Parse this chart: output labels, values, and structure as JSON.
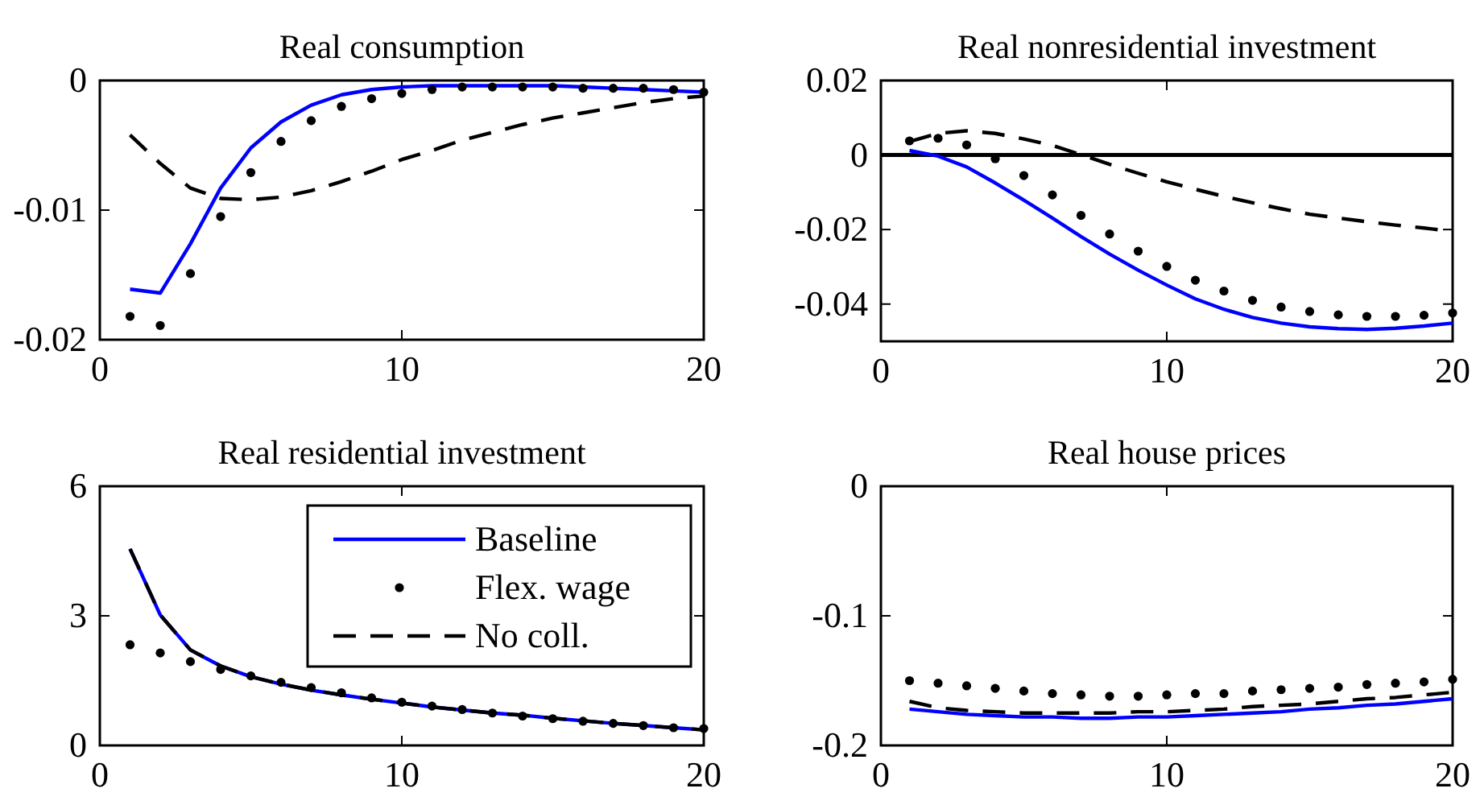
{
  "chart_data": [
    {
      "type": "line",
      "title": "Real consumption",
      "x": [
        1,
        2,
        3,
        4,
        5,
        6,
        7,
        8,
        9,
        10,
        11,
        12,
        13,
        14,
        15,
        16,
        17,
        18,
        19,
        20
      ],
      "xlim": [
        0,
        20
      ],
      "xticks": [
        0,
        10,
        20
      ],
      "ylim": [
        -0.02,
        0
      ],
      "yticks": [
        -0.02,
        -0.01,
        0
      ],
      "series": [
        {
          "color": "#0000ff",
          "line_style": "solid",
          "values": [
            -0.0161,
            -0.0164,
            -0.0126,
            -0.0083,
            -0.0052,
            -0.0032,
            -0.0019,
            -0.0011,
            -0.0007,
            -0.0005,
            -0.0004,
            -0.0004,
            -0.0004,
            -0.0004,
            -0.0004,
            -0.0005,
            -0.0006,
            -0.0007,
            -0.0008,
            -0.0009
          ]
        },
        {
          "type": "scatter",
          "color": "#000000",
          "marker": "circle",
          "values": [
            -0.0182,
            -0.0189,
            -0.0149,
            -0.0105,
            -0.0071,
            -0.0047,
            -0.0031,
            -0.002,
            -0.0014,
            -0.001,
            -0.0007,
            -0.0005,
            -0.0005,
            -0.0005,
            -0.0005,
            -0.0006,
            -0.0006,
            -0.0006,
            -0.0007,
            -0.0009
          ]
        },
        {
          "color": "#000000",
          "line_style": "dashed",
          "values": [
            -0.0042,
            -0.0064,
            -0.0083,
            -0.0091,
            -0.0092,
            -0.009,
            -0.0085,
            -0.0078,
            -0.007,
            -0.0061,
            -0.0054,
            -0.0046,
            -0.004,
            -0.0034,
            -0.0029,
            -0.0025,
            -0.0021,
            -0.0017,
            -0.0014,
            -0.0012
          ]
        }
      ]
    },
    {
      "type": "line",
      "title": "Real nonresidential investment",
      "x": [
        1,
        2,
        3,
        4,
        5,
        6,
        7,
        8,
        9,
        10,
        11,
        12,
        13,
        14,
        15,
        16,
        17,
        18,
        19,
        20
      ],
      "xlim": [
        0,
        20
      ],
      "xticks": [
        0,
        10,
        20
      ],
      "ylim": [
        -0.05,
        0.02
      ],
      "yticks": [
        -0.04,
        -0.02,
        0,
        0.02
      ],
      "ref_lines": [
        {
          "axis": "y",
          "value": 0,
          "color": "#000000"
        }
      ],
      "series": [
        {
          "color": "#0000ff",
          "line_style": "solid",
          "values": [
            0.0012,
            -0.0003,
            -0.0032,
            -0.0075,
            -0.0121,
            -0.0169,
            -0.0219,
            -0.0266,
            -0.0309,
            -0.0349,
            -0.0386,
            -0.0414,
            -0.0436,
            -0.0451,
            -0.0461,
            -0.0466,
            -0.0468,
            -0.0465,
            -0.0459,
            -0.0451
          ]
        },
        {
          "type": "scatter",
          "color": "#000000",
          "marker": "circle",
          "values": [
            0.0038,
            0.0045,
            0.0027,
            -0.001,
            -0.0055,
            -0.0107,
            -0.0162,
            -0.0212,
            -0.0258,
            -0.0299,
            -0.0336,
            -0.0365,
            -0.039,
            -0.0408,
            -0.042,
            -0.0429,
            -0.0433,
            -0.0433,
            -0.043,
            -0.0424
          ]
        },
        {
          "color": "#000000",
          "line_style": "dashed",
          "values": [
            0.0036,
            0.0058,
            0.0065,
            0.0058,
            0.0043,
            0.0026,
            0.0001,
            -0.0025,
            -0.0049,
            -0.0072,
            -0.0092,
            -0.0111,
            -0.0128,
            -0.0144,
            -0.0159,
            -0.0169,
            -0.0179,
            -0.0188,
            -0.0196,
            -0.0205
          ]
        }
      ]
    },
    {
      "type": "line",
      "title": "Real residential investment",
      "x": [
        1,
        2,
        3,
        4,
        5,
        6,
        7,
        8,
        9,
        10,
        11,
        12,
        13,
        14,
        15,
        16,
        17,
        18,
        19,
        20
      ],
      "xlim": [
        0,
        20
      ],
      "xticks": [
        0,
        10,
        20
      ],
      "ylim": [
        0,
        6
      ],
      "yticks": [
        0,
        3,
        6
      ],
      "legend": "top right",
      "series": [
        {
          "name": "Baseline",
          "color": "#0000ff",
          "line_style": "solid",
          "values": [
            4.55,
            3.02,
            2.21,
            1.84,
            1.59,
            1.42,
            1.28,
            1.17,
            1.07,
            0.98,
            0.89,
            0.82,
            0.75,
            0.7,
            0.63,
            0.57,
            0.51,
            0.46,
            0.41,
            0.36
          ]
        },
        {
          "name": "Flex. wage",
          "type": "scatter",
          "color": "#000000",
          "marker": "circle",
          "values": [
            2.33,
            2.14,
            1.94,
            1.76,
            1.61,
            1.46,
            1.34,
            1.22,
            1.1,
            1.0,
            0.91,
            0.83,
            0.75,
            0.68,
            0.62,
            0.56,
            0.51,
            0.46,
            0.41,
            0.39
          ]
        },
        {
          "name": "No coll.",
          "color": "#000000",
          "line_style": "dashed",
          "values": [
            4.55,
            3.02,
            2.21,
            1.84,
            1.59,
            1.42,
            1.28,
            1.17,
            1.07,
            0.98,
            0.89,
            0.82,
            0.75,
            0.7,
            0.63,
            0.57,
            0.51,
            0.46,
            0.41,
            0.36
          ]
        }
      ]
    },
    {
      "type": "line",
      "title": "Real house prices",
      "x": [
        1,
        2,
        3,
        4,
        5,
        6,
        7,
        8,
        9,
        10,
        11,
        12,
        13,
        14,
        15,
        16,
        17,
        18,
        19,
        20
      ],
      "xlim": [
        0,
        20
      ],
      "xticks": [
        0,
        10,
        20
      ],
      "ylim": [
        -0.2,
        0
      ],
      "yticks": [
        -0.2,
        -0.1,
        0
      ],
      "series": [
        {
          "color": "#0000ff",
          "line_style": "solid",
          "values": [
            -0.172,
            -0.174,
            -0.176,
            -0.177,
            -0.178,
            -0.178,
            -0.179,
            -0.179,
            -0.178,
            -0.178,
            -0.177,
            -0.176,
            -0.175,
            -0.174,
            -0.172,
            -0.171,
            -0.169,
            -0.168,
            -0.166,
            -0.164
          ]
        },
        {
          "type": "scatter",
          "color": "#000000",
          "marker": "circle",
          "values": [
            -0.15,
            -0.152,
            -0.154,
            -0.156,
            -0.158,
            -0.16,
            -0.161,
            -0.162,
            -0.162,
            -0.161,
            -0.16,
            -0.16,
            -0.158,
            -0.157,
            -0.156,
            -0.155,
            -0.153,
            -0.152,
            -0.151,
            -0.149
          ]
        },
        {
          "color": "#000000",
          "line_style": "dashed",
          "values": [
            -0.166,
            -0.171,
            -0.173,
            -0.174,
            -0.175,
            -0.175,
            -0.175,
            -0.175,
            -0.174,
            -0.174,
            -0.173,
            -0.172,
            -0.17,
            -0.169,
            -0.168,
            -0.166,
            -0.164,
            -0.163,
            -0.161,
            -0.159
          ]
        }
      ]
    }
  ]
}
